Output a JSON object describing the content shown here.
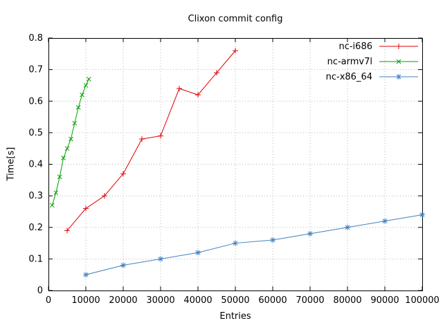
{
  "chart_data": {
    "type": "line",
    "title": "Clixon commit config",
    "xlabel": "Entries",
    "ylabel": "Time[s]",
    "xlim": [
      0,
      100000
    ],
    "ylim": [
      0,
      0.8
    ],
    "x_ticks": [
      0,
      10000,
      20000,
      30000,
      40000,
      50000,
      60000,
      70000,
      80000,
      90000,
      100000
    ],
    "y_ticks": [
      0,
      0.1,
      0.2,
      0.3,
      0.4,
      0.5,
      0.6,
      0.7,
      0.8
    ],
    "grid": true,
    "legend_position": "top-right",
    "colors": {
      "axis": "#000000",
      "grid": "#b8b8b8",
      "text": "#000000"
    },
    "series": [
      {
        "name": "nc-i686",
        "color": "#e00000",
        "marker": "plus",
        "x": [
          5000,
          10000,
          15000,
          20000,
          25000,
          30000,
          35000,
          40000,
          45000,
          50000
        ],
        "y": [
          0.19,
          0.26,
          0.3,
          0.37,
          0.48,
          0.49,
          0.64,
          0.62,
          0.69,
          0.76
        ]
      },
      {
        "name": "nc-armv7l",
        "color": "#00a000",
        "marker": "cross",
        "x": [
          1000,
          2000,
          3000,
          4000,
          5000,
          6000,
          7000,
          8000,
          9000,
          10000,
          10800
        ],
        "y": [
          0.27,
          0.31,
          0.36,
          0.42,
          0.45,
          0.48,
          0.53,
          0.58,
          0.62,
          0.65,
          0.67
        ]
      },
      {
        "name": "nc-x86_64",
        "color": "#4080c0",
        "marker": "star",
        "x": [
          10000,
          20000,
          30000,
          40000,
          50000,
          60000,
          70000,
          80000,
          90000,
          100000
        ],
        "y": [
          0.05,
          0.08,
          0.1,
          0.12,
          0.15,
          0.16,
          0.18,
          0.2,
          0.22,
          0.24
        ]
      }
    ]
  }
}
